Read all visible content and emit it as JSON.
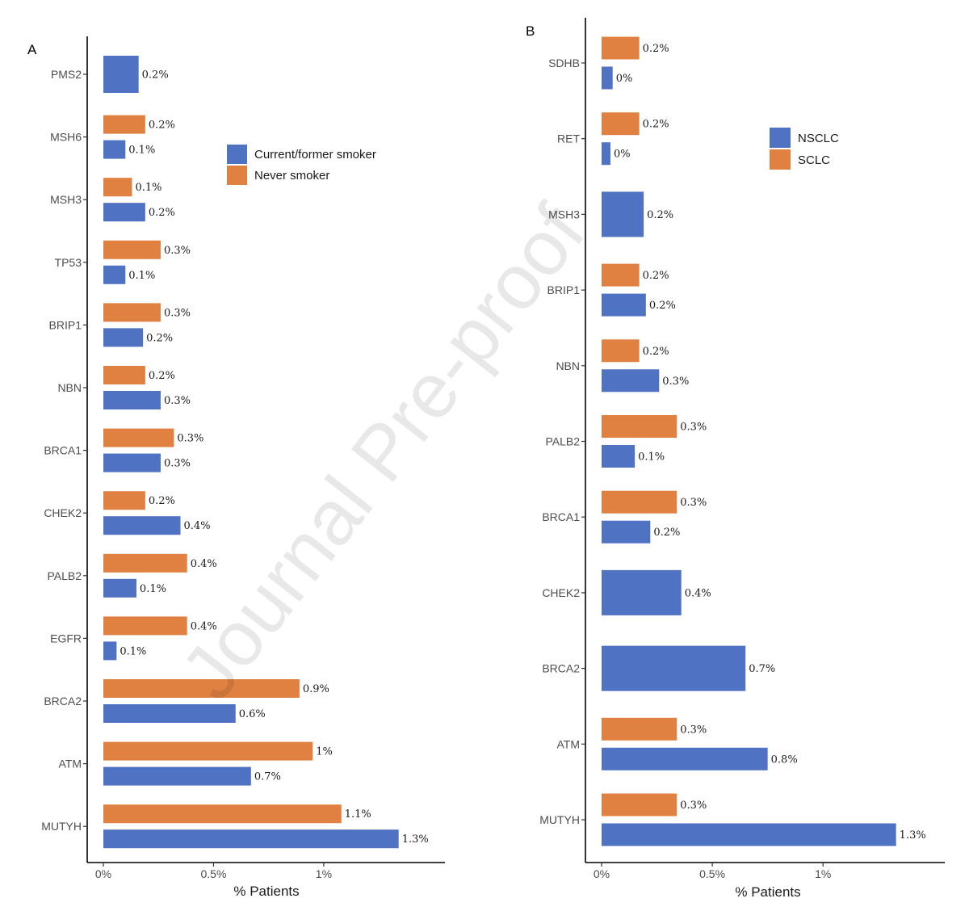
{
  "watermark": "Journal Pre-proof",
  "colors": {
    "blue": "#5072c2",
    "orange": "#e08142"
  },
  "chart_data": [
    {
      "panel": "A",
      "type": "bar",
      "orientation": "horizontal",
      "xlabel": "% Patients",
      "xlim": [
        0,
        1.55
      ],
      "xticks": [
        0,
        0.5,
        1
      ],
      "xtick_labels": [
        "0%",
        "0.5%",
        "1%"
      ],
      "grid": false,
      "legend_placement": "top-right",
      "categories": [
        "PMS2",
        "MSH6",
        "MSH3",
        "TP53",
        "BRIP1",
        "NBN",
        "BRCA1",
        "CHEK2",
        "PALB2",
        "EGFR",
        "BRCA2",
        "ATM",
        "MUTYH"
      ],
      "series": [
        {
          "name": "Current/former smoker",
          "color": "#5072c2",
          "values": [
            0.16,
            0.1,
            0.19,
            0.1,
            0.18,
            0.26,
            0.26,
            0.35,
            0.15,
            0.06,
            0.6,
            0.67,
            1.34
          ],
          "labels": [
            "0.2%",
            "0.1%",
            "0.2%",
            "0.1%",
            "0.2%",
            "0.3%",
            "0.3%",
            "0.4%",
            "0.1%",
            "0.1%",
            "0.6%",
            "0.7%",
            "1.3%"
          ]
        },
        {
          "name": "Never smoker",
          "color": "#e08142",
          "values": [
            null,
            0.19,
            0.13,
            0.26,
            0.26,
            0.19,
            0.32,
            0.19,
            0.38,
            0.38,
            0.89,
            0.95,
            1.08
          ],
          "labels": [
            null,
            "0.2%",
            "0.1%",
            "0.3%",
            "0.3%",
            "0.2%",
            "0.3%",
            "0.2%",
            "0.4%",
            "0.4%",
            "0.9%",
            "1%",
            "1.1%"
          ]
        }
      ]
    },
    {
      "panel": "B",
      "type": "bar",
      "orientation": "horizontal",
      "xlabel": "% Patients",
      "xlim": [
        0,
        1.55
      ],
      "xticks": [
        0,
        0.5,
        1
      ],
      "xtick_labels": [
        "0%",
        "0.5%",
        "1%"
      ],
      "grid": false,
      "legend_placement": "top-right",
      "categories": [
        "SDHB",
        "RET",
        "MSH3",
        "BRIP1",
        "NBN",
        "PALB2",
        "BRCA1",
        "CHEK2",
        "BRCA2",
        "ATM",
        "MUTYH"
      ],
      "series": [
        {
          "name": "NSCLC",
          "color": "#5072c2",
          "values": [
            0.05,
            0.04,
            0.19,
            0.2,
            0.26,
            0.15,
            0.22,
            0.36,
            0.65,
            0.75,
            1.33
          ],
          "labels": [
            "0%",
            "0%",
            "0.2%",
            "0.2%",
            "0.3%",
            "0.1%",
            "0.2%",
            "0.4%",
            "0.7%",
            "0.8%",
            "1.3%"
          ]
        },
        {
          "name": "SCLC",
          "color": "#e08142",
          "values": [
            0.17,
            0.17,
            null,
            0.17,
            0.17,
            0.34,
            0.34,
            null,
            null,
            0.34,
            0.34
          ],
          "labels": [
            "0.2%",
            "0.2%",
            null,
            "0.2%",
            "0.2%",
            "0.3%",
            "0.3%",
            null,
            null,
            "0.3%",
            "0.3%"
          ]
        }
      ]
    }
  ]
}
